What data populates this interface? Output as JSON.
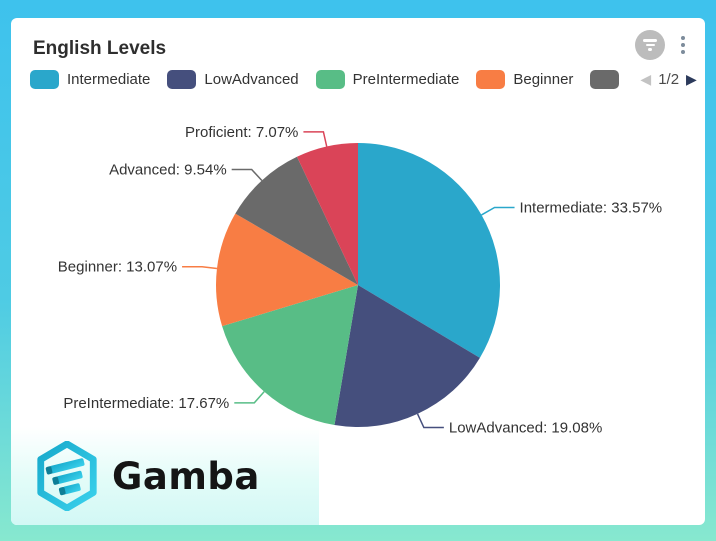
{
  "theme": {
    "frame_gradient_top": "#3EC2ED",
    "frame_gradient_bottom": "#87E8CF",
    "card_bg": "#FFFFFF",
    "text_color": "#333333"
  },
  "header": {
    "title": "English Levels"
  },
  "legend": {
    "items": [
      {
        "label": "Intermediate",
        "color": "#2AA7CB"
      },
      {
        "label": "LowAdvanced",
        "color": "#454F7D"
      },
      {
        "label": "PreIntermediate",
        "color": "#58BD86"
      },
      {
        "label": "Beginner",
        "color": "#F87D44"
      },
      {
        "label": "",
        "color": "#6A6A6A"
      }
    ],
    "pagination": {
      "page": "1/2",
      "prev_icon": "◀",
      "next_icon": "▶"
    }
  },
  "chart_data": {
    "type": "pie",
    "title": "English Levels",
    "legend_position": "top",
    "direction": "clockwise",
    "start_angle_deg": 0,
    "label_format": "{name}: {value}%",
    "categories": [
      "Intermediate",
      "LowAdvanced",
      "PreIntermediate",
      "Beginner",
      "Advanced",
      "Proficient"
    ],
    "values": [
      33.57,
      19.08,
      17.67,
      13.07,
      9.54,
      7.07
    ],
    "slices": [
      {
        "name": "Intermediate",
        "value": 33.57,
        "color": "#2AA7CB",
        "label": "Intermediate: 33.57%"
      },
      {
        "name": "LowAdvanced",
        "value": 19.08,
        "color": "#454F7D",
        "label": "LowAdvanced: 19.08%"
      },
      {
        "name": "PreIntermediate",
        "value": 17.67,
        "color": "#58BD86",
        "label": "PreIntermediate: 17.67%"
      },
      {
        "name": "Beginner",
        "value": 13.07,
        "color": "#F87D44",
        "label": "Beginner: 13.07%"
      },
      {
        "name": "Advanced",
        "value": 9.54,
        "color": "#6A6A6A",
        "label": "Advanced: 9.54%"
      },
      {
        "name": "Proficient",
        "value": 7.07,
        "color": "#DA4458",
        "label": "Proficient: 7.07%"
      }
    ]
  },
  "watermark": {
    "brand": "Gamba"
  }
}
